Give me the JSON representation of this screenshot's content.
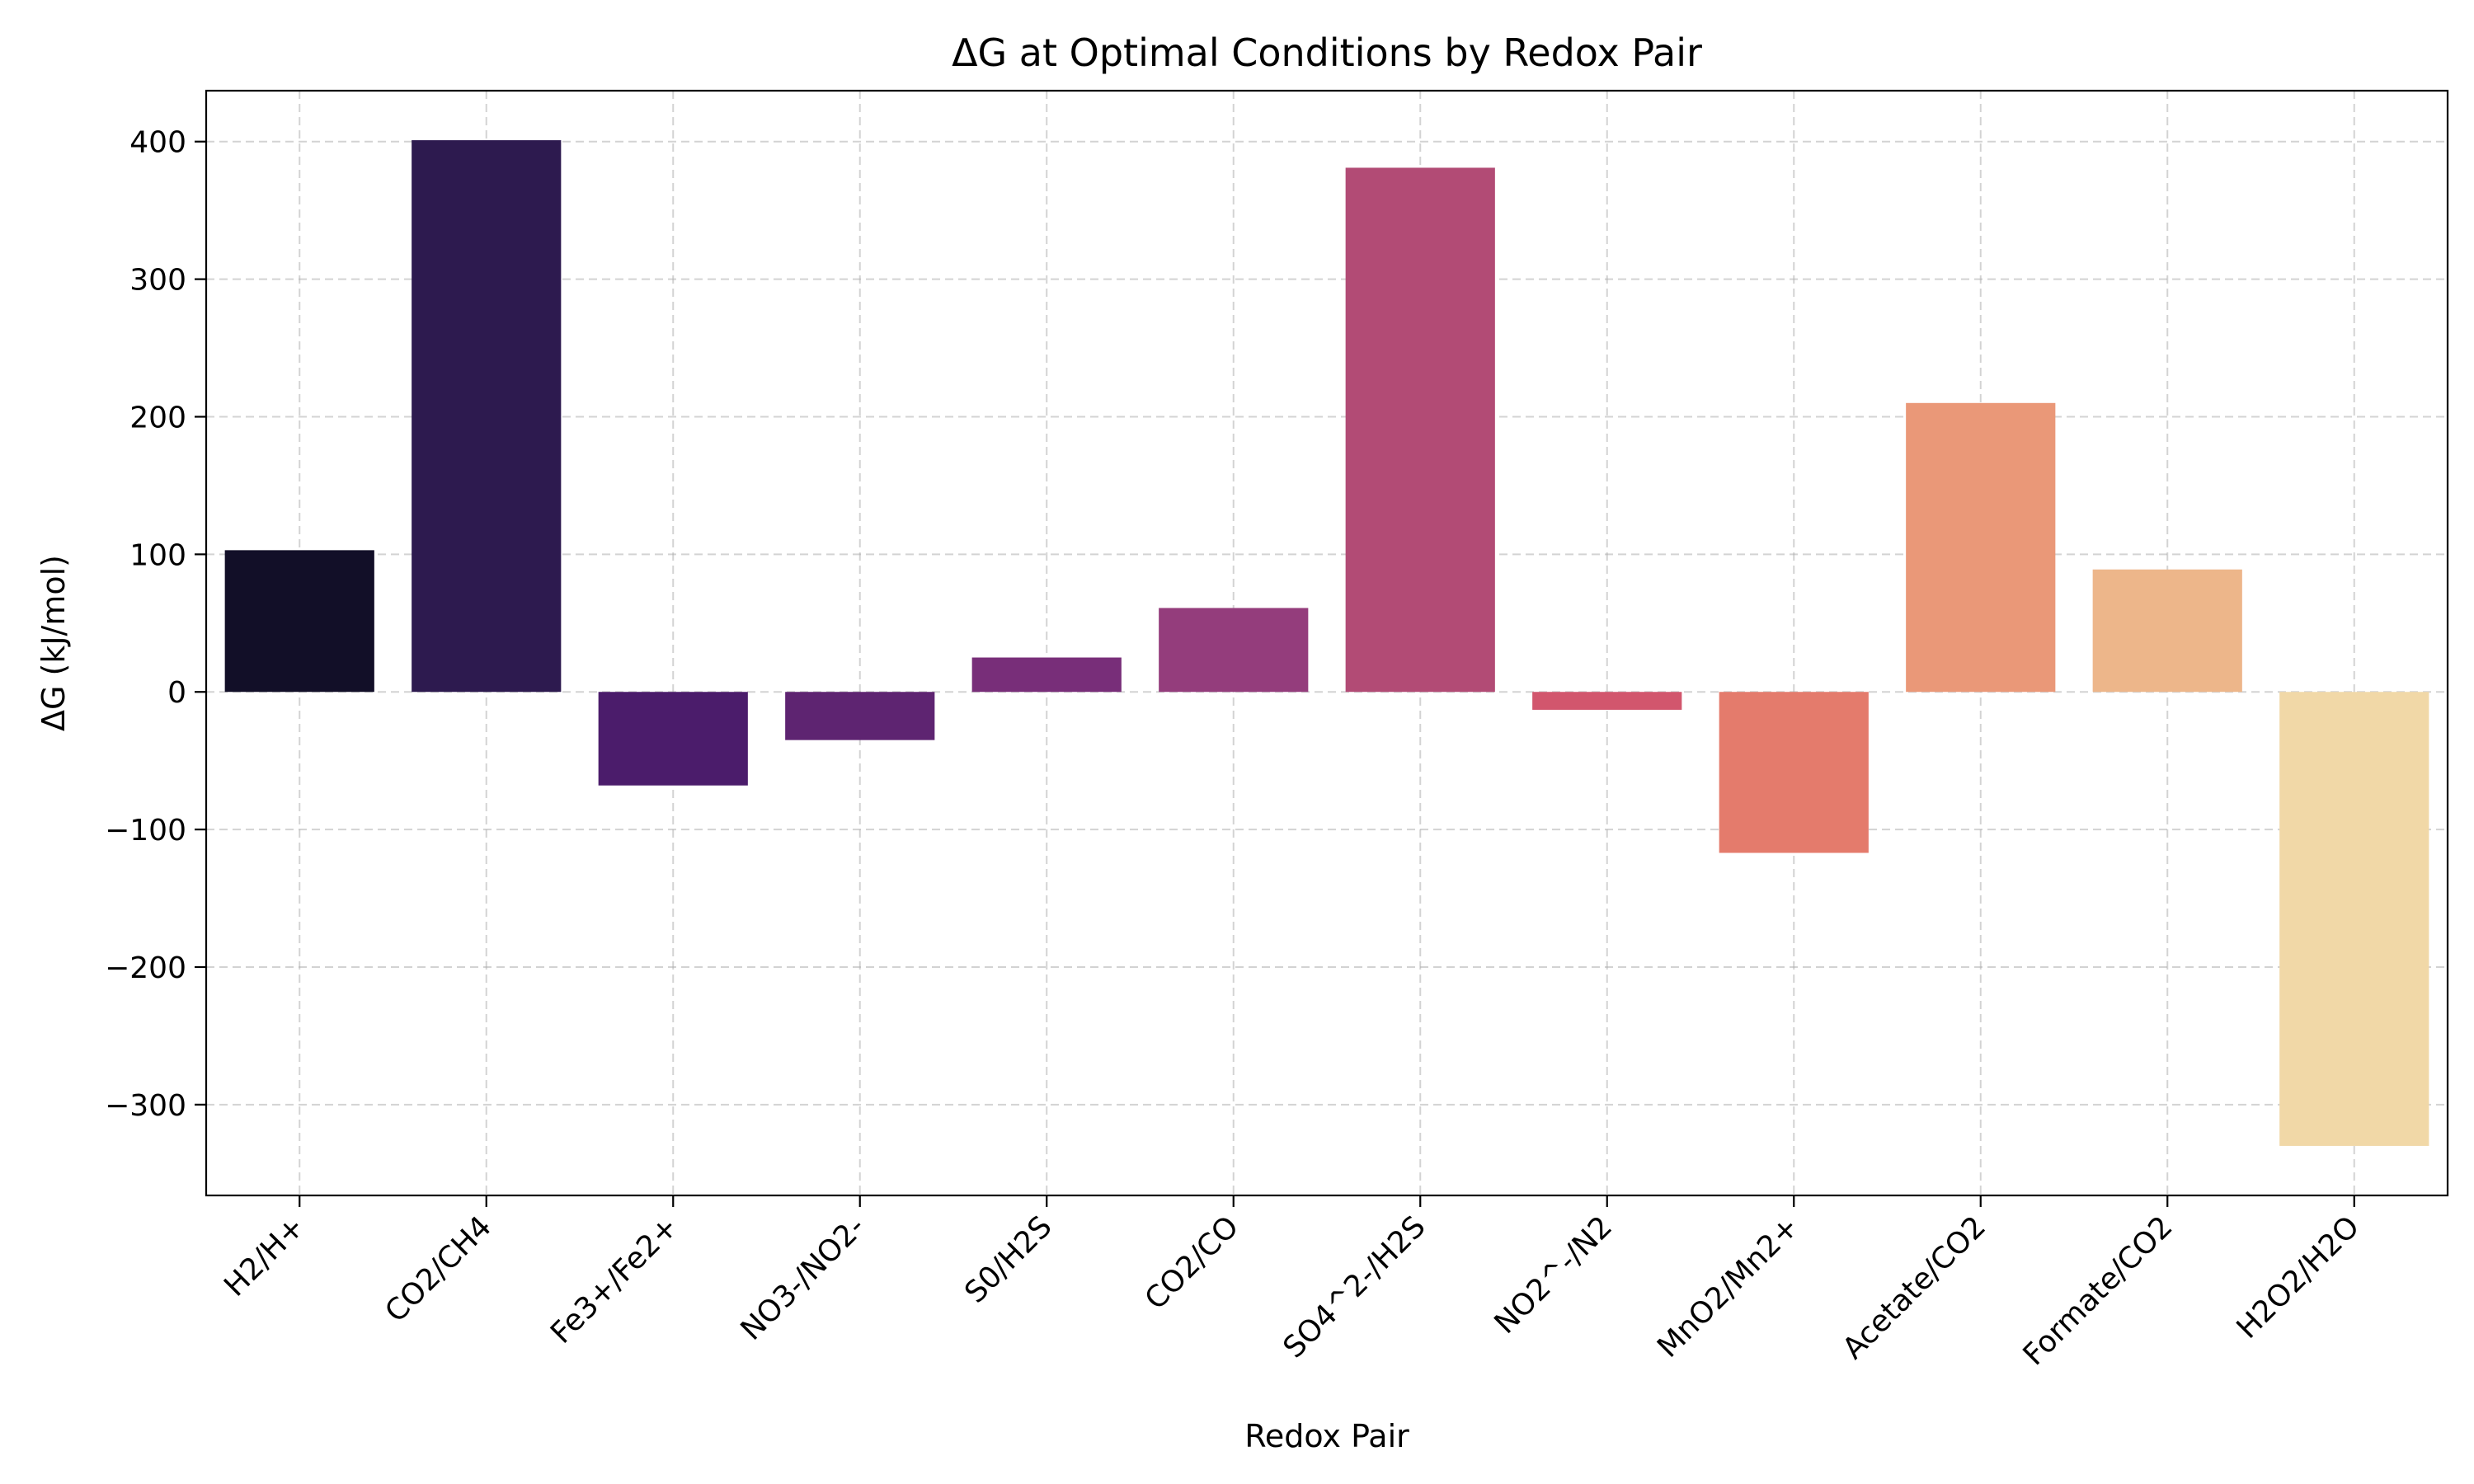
{
  "chart_data": {
    "type": "bar",
    "title": "ΔG at Optimal Conditions by Redox Pair",
    "xlabel": "Redox Pair",
    "ylabel": "ΔG (kJ/mol)",
    "categories": [
      "H2/H+",
      "CO2/CH4",
      "Fe3+/Fe2+",
      "NO3-/NO2-",
      "S0/H2S",
      "CO2/CO",
      "SO4^2-/H2S",
      "NO2^-/N2",
      "MnO2/Mn2+",
      "Acetate/CO2",
      "Formate/CO2",
      "H2O2/H2O"
    ],
    "values": [
      103,
      401,
      -68,
      -35,
      25,
      61,
      381,
      -13,
      -117,
      210,
      89,
      -330
    ],
    "ylim": [
      -366,
      437
    ],
    "yticks": [
      -300,
      -200,
      -100,
      0,
      100,
      200,
      300,
      400
    ],
    "ytick_labels": [
      "−300",
      "−200",
      "−100",
      "0",
      "100",
      "200",
      "300",
      "400"
    ],
    "grid": true,
    "colors": [
      "#120f28",
      "#2d1a4f",
      "#4b1c6b",
      "#5e2471",
      "#782e79",
      "#943d7c",
      "#b24b75",
      "#d2566d",
      "#e47b6c",
      "#ea9878",
      "#edb68a",
      "#f1d8a7"
    ]
  }
}
